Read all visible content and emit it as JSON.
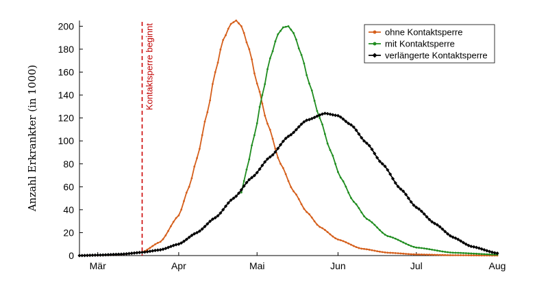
{
  "chart_data": {
    "type": "line",
    "title": "",
    "xlabel": "",
    "ylabel": "Anzahl Erkrankter (in 1000)",
    "x_ticks": [
      "Mär",
      "Apr",
      "Mai",
      "Jun",
      "Jul",
      "Aug"
    ],
    "x_domain": [
      "2020-02-23",
      "2020-08-01"
    ],
    "x_tick_dates": [
      "2020-03-01",
      "2020-04-01",
      "2020-05-01",
      "2020-06-01",
      "2020-07-01",
      "2020-08-01"
    ],
    "ylim": [
      0,
      205
    ],
    "y_ticks": [
      0,
      20,
      40,
      60,
      80,
      100,
      120,
      140,
      160,
      180,
      200
    ],
    "grid": false,
    "legend_position": "top-right",
    "annotation": {
      "text": "Kontaktsperre beginnt",
      "x_date": "2020-03-18",
      "color": "#cc0000",
      "style": "dashed vertical line"
    },
    "series": [
      {
        "name": "ohne Kontaktsperre",
        "color": "#d55e1a",
        "marker": "dot",
        "points": [
          [
            "2020-02-23",
            0
          ],
          [
            "2020-03-01",
            0.3
          ],
          [
            "2020-03-10",
            1
          ],
          [
            "2020-03-18",
            3
          ],
          [
            "2020-03-25",
            12
          ],
          [
            "2020-04-01",
            35
          ],
          [
            "2020-04-05",
            60
          ],
          [
            "2020-04-08",
            85
          ],
          [
            "2020-04-12",
            125
          ],
          [
            "2020-04-15",
            160
          ],
          [
            "2020-04-18",
            188
          ],
          [
            "2020-04-21",
            202
          ],
          [
            "2020-04-23",
            205
          ],
          [
            "2020-04-25",
            200
          ],
          [
            "2020-04-28",
            180
          ],
          [
            "2020-05-01",
            150
          ],
          [
            "2020-05-05",
            115
          ],
          [
            "2020-05-10",
            80
          ],
          [
            "2020-05-15",
            56
          ],
          [
            "2020-05-20",
            38
          ],
          [
            "2020-05-25",
            25
          ],
          [
            "2020-06-01",
            14
          ],
          [
            "2020-06-10",
            6
          ],
          [
            "2020-06-20",
            2.5
          ],
          [
            "2020-07-01",
            1
          ],
          [
            "2020-07-15",
            0.3
          ],
          [
            "2020-08-01",
            0
          ]
        ]
      },
      {
        "name": "mit Kontaktsperre",
        "color": "#1e8c1e",
        "marker": "dot",
        "points": [
          [
            "2020-04-25",
            55
          ],
          [
            "2020-04-27",
            75
          ],
          [
            "2020-04-30",
            105
          ],
          [
            "2020-05-03",
            140
          ],
          [
            "2020-05-06",
            172
          ],
          [
            "2020-05-09",
            193
          ],
          [
            "2020-05-11",
            199
          ],
          [
            "2020-05-13",
            200
          ],
          [
            "2020-05-15",
            194
          ],
          [
            "2020-05-18",
            175
          ],
          [
            "2020-05-21",
            150
          ],
          [
            "2020-05-25",
            120
          ],
          [
            "2020-05-29",
            92
          ],
          [
            "2020-06-02",
            68
          ],
          [
            "2020-06-07",
            47
          ],
          [
            "2020-06-12",
            32
          ],
          [
            "2020-06-20",
            17
          ],
          [
            "2020-07-01",
            7
          ],
          [
            "2020-07-15",
            2.5
          ],
          [
            "2020-08-01",
            0.8
          ]
        ]
      },
      {
        "name": "verlängerte Kontaktsperre",
        "color": "#000000",
        "marker": "diamond",
        "points": [
          [
            "2020-02-23",
            0
          ],
          [
            "2020-03-01",
            0.4
          ],
          [
            "2020-03-10",
            1.2
          ],
          [
            "2020-03-18",
            2.8
          ],
          [
            "2020-03-25",
            5
          ],
          [
            "2020-04-01",
            10
          ],
          [
            "2020-04-08",
            20
          ],
          [
            "2020-04-15",
            33
          ],
          [
            "2020-04-22",
            50
          ],
          [
            "2020-04-29",
            68
          ],
          [
            "2020-05-06",
            86
          ],
          [
            "2020-05-13",
            104
          ],
          [
            "2020-05-20",
            118
          ],
          [
            "2020-05-27",
            124
          ],
          [
            "2020-06-01",
            122
          ],
          [
            "2020-06-06",
            114
          ],
          [
            "2020-06-12",
            98
          ],
          [
            "2020-06-18",
            80
          ],
          [
            "2020-06-25",
            58
          ],
          [
            "2020-07-01",
            42
          ],
          [
            "2020-07-08",
            28
          ],
          [
            "2020-07-15",
            16
          ],
          [
            "2020-07-22",
            8
          ],
          [
            "2020-08-01",
            2
          ]
        ]
      }
    ]
  }
}
